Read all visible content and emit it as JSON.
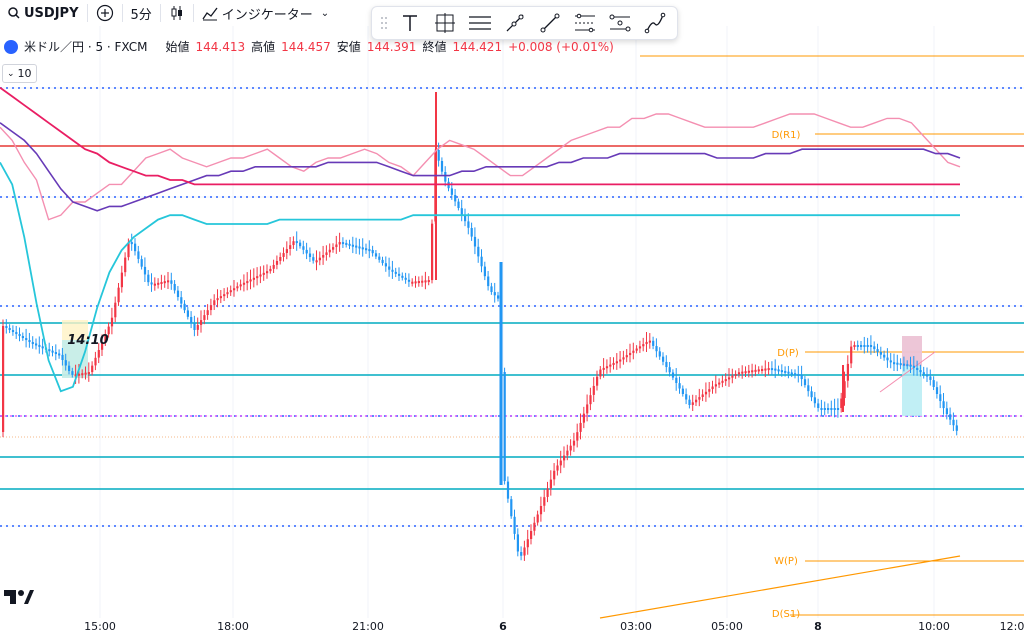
{
  "topbar": {
    "symbol": "USDJPY",
    "interval": "5分",
    "indicators_label": "インジケーター"
  },
  "legend": {
    "title": "米ドル／円 · 5 · FXCM",
    "open_label": "始値",
    "open": "144.413",
    "high_label": "高値",
    "high": "144.457",
    "low_label": "安値",
    "low": "144.391",
    "close_label": "終値",
    "close": "144.421",
    "change": "+0.008 (+0.01%)"
  },
  "collapse_count": "10",
  "time_label": "14:10",
  "drawing_toolbar": {
    "tools": [
      "drag-handle-icon",
      "text-tool-icon",
      "measure-tool-icon",
      "horizontal-lines-icon",
      "ray-tool-icon",
      "trendline-tool-icon",
      "fib-tool-icon",
      "parallel-channel-icon",
      "path-tool-icon"
    ]
  },
  "colors": {
    "up": "#f23645",
    "down": "#2196f3",
    "ma_fast": "#f48fb1",
    "ma_mid": "#673ab7",
    "ma_slow_red": "#e91e63",
    "ma_slow_teal": "#26c6da",
    "level_teal": "#00acc1",
    "level_dotted": "#2962ff",
    "level_red": "#e53935",
    "pivot": "#ff9800"
  },
  "chart_data": {
    "type": "line",
    "time_ticks": [
      "15:00",
      "18:00",
      "21:00",
      "6",
      "03:00",
      "05:00",
      "8",
      "10:00",
      "12:0"
    ],
    "pivot_labels": [
      "D(R1)",
      "D(P)",
      "W(P)",
      "D(S1)"
    ],
    "series": [
      {
        "values": [
          77,
          74,
          69,
          65,
          56,
          57,
          60,
          60,
          62,
          64,
          64,
          67,
          70,
          71,
          72,
          70,
          69,
          68,
          69,
          70,
          70,
          71,
          72,
          70,
          68,
          67,
          69,
          70,
          70,
          71,
          72,
          71,
          69,
          68,
          66,
          69,
          72,
          74,
          73,
          72,
          70,
          68,
          66,
          66,
          68,
          70,
          72,
          74,
          75,
          76,
          77,
          77,
          79,
          79,
          80,
          80,
          79,
          78,
          77,
          77,
          77,
          77,
          77,
          78,
          79,
          80,
          80,
          80,
          79,
          78,
          77,
          77,
          78,
          79,
          79,
          78,
          75,
          72,
          69,
          68
        ]
      },
      {
        "values": [
          78,
          76,
          74,
          71,
          67,
          63,
          60,
          59,
          58,
          59,
          59,
          60,
          61,
          62,
          63,
          64,
          65,
          66,
          66,
          67,
          67,
          68,
          68,
          68,
          68,
          68,
          68,
          69,
          69,
          69,
          69,
          69,
          68,
          67,
          66,
          66,
          66,
          66,
          67,
          67,
          68,
          68,
          68,
          68,
          68,
          68,
          69,
          69,
          70,
          70,
          70,
          71,
          71,
          71,
          71,
          71,
          71,
          71,
          71,
          70,
          70,
          70,
          70,
          71,
          71,
          71,
          72,
          72,
          72,
          72,
          72,
          72,
          72,
          72,
          72,
          72,
          72,
          71,
          71,
          70
        ]
      },
      {
        "values": [
          86,
          84,
          82,
          80,
          78,
          76,
          74,
          72,
          71,
          69,
          68,
          67,
          66,
          66,
          65,
          65,
          64,
          64,
          64,
          64,
          64,
          64,
          64,
          64,
          64,
          64,
          64,
          64,
          64,
          64,
          64,
          64,
          64,
          64,
          64,
          64,
          64,
          64,
          64,
          64,
          64,
          64,
          64,
          64,
          64,
          64,
          64,
          64,
          64,
          64,
          64,
          64,
          64,
          64,
          64,
          64,
          64,
          64,
          64,
          64,
          64,
          64,
          64,
          64,
          64,
          64,
          64,
          64,
          64,
          64,
          64,
          64,
          64,
          64,
          64,
          64,
          64,
          64,
          64,
          64
        ]
      },
      {
        "values": [
          69,
          64,
          52,
          37,
          24,
          17,
          18,
          26,
          36,
          44,
          49,
          52,
          54,
          56,
          57,
          57,
          56,
          55,
          55,
          55,
          55,
          55,
          55,
          56,
          56,
          56,
          56,
          56,
          56,
          56,
          56,
          56,
          56,
          56,
          57,
          57,
          57,
          57,
          57,
          57,
          57,
          57,
          57,
          57,
          57,
          57,
          57,
          57,
          57,
          57,
          57,
          57,
          57,
          57,
          57,
          57,
          57,
          57,
          57,
          57,
          57,
          57,
          57,
          57,
          57,
          57,
          57,
          57,
          57,
          57,
          57,
          57,
          57,
          57,
          57,
          57,
          57,
          57,
          57,
          57
        ]
      }
    ]
  }
}
